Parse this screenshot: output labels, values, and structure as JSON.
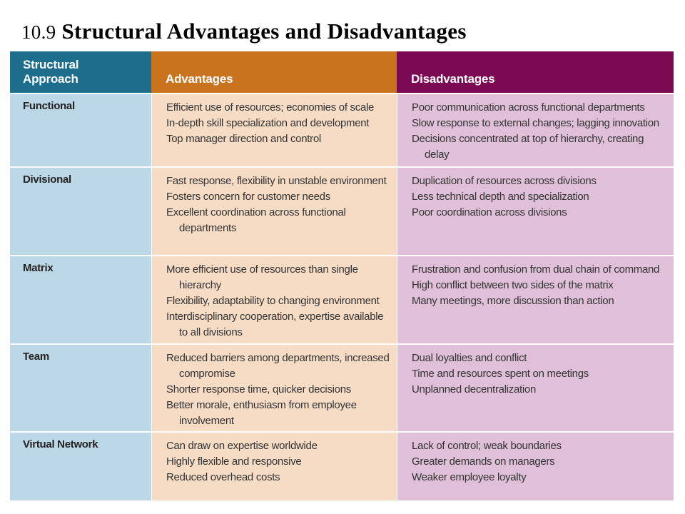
{
  "title": {
    "number": "10.9",
    "text": "Structural Advantages and Disadvantages"
  },
  "table": {
    "headers": [
      "Structural Approach",
      "Advantages",
      "Disadvantages"
    ],
    "rows": [
      {
        "approach": "Functional",
        "advantages": [
          "Efficient use of resources; economies of scale",
          "In-depth skill specialization and development",
          "Top manager direction and control"
        ],
        "disadvantages": [
          "Poor communication across functional departments",
          "Slow response to external changes; lagging innovation",
          "Decisions concentrated at top of hierarchy, creating delay"
        ]
      },
      {
        "approach": "Divisional",
        "advantages": [
          "Fast response, flexibility in unstable environment",
          "Fosters concern for customer needs",
          "Excellent coordination across functional departments"
        ],
        "disadvantages": [
          "Duplication of resources across divisions",
          "Less technical depth and specialization",
          "Poor coordination across divisions"
        ]
      },
      {
        "approach": "Matrix",
        "advantages": [
          "More efficient use of resources than single hierarchy",
          "Flexibility, adaptability to changing environment",
          "Interdisciplinary cooperation, expertise available to all divisions"
        ],
        "disadvantages": [
          "Frustration and confusion from dual chain of command",
          "High conflict between two sides of the matrix",
          "Many meetings, more discussion than action"
        ]
      },
      {
        "approach": "Team",
        "advantages": [
          "Reduced barriers among departments, increased compromise",
          "Shorter response time, quicker decisions",
          "Better morale, enthusiasm from employee involvement"
        ],
        "disadvantages": [
          "Dual loyalties and conflict",
          "Time and resources spent on meetings",
          "Unplanned decentralization"
        ]
      },
      {
        "approach": "Virtual Network",
        "advantages": [
          "Can draw on expertise worldwide",
          "Highly flexible and responsive",
          "Reduced overhead costs"
        ],
        "disadvantages": [
          "Lack of control; weak boundaries",
          "Greater demands on managers",
          "Weaker employee loyalty"
        ]
      }
    ]
  }
}
